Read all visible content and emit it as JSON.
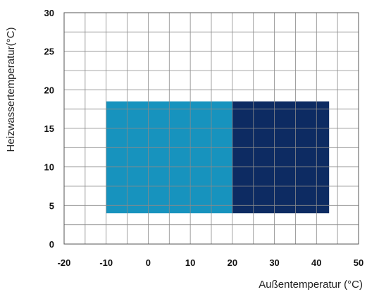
{
  "chart_data": {
    "type": "area",
    "xlabel": "Außentemperatur (°C)",
    "ylabel": "Heizwassertemperatur(°C)",
    "xlim": [
      -20,
      50
    ],
    "ylim": [
      0,
      30
    ],
    "x_minor_step": 5,
    "y_minor_step": 2.5,
    "x_ticks": [
      -20,
      -10,
      0,
      10,
      20,
      30,
      40,
      50
    ],
    "y_ticks": [
      0,
      5,
      10,
      15,
      20,
      25,
      30
    ],
    "grid": true,
    "regions": [
      {
        "x_range": [
          -10,
          20
        ],
        "y_range": [
          4,
          18.5
        ],
        "color": "#1793BE"
      },
      {
        "x_range": [
          20,
          43
        ],
        "y_range": [
          4,
          18.5
        ],
        "color": "#0D2B62"
      }
    ]
  }
}
